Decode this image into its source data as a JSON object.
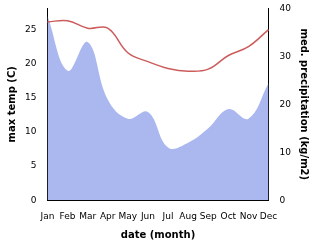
{
  "chart_data": {
    "type": "line",
    "x_label": "date (month)",
    "y_label": "max temp (C)",
    "y2_label": "med. precipitation (kg/m2)",
    "categories": [
      "Jan",
      "Feb",
      "Mar",
      "Apr",
      "May",
      "Jun",
      "Jul",
      "Aug",
      "Sep",
      "Oct",
      "Nov",
      "Dec"
    ],
    "series": [
      {
        "name": "max temp",
        "type": "line",
        "color": "#cd5c5c",
        "values": [
          26.1,
          26.3,
          25.2,
          25.2,
          21.6,
          20.3,
          19.3,
          18.9,
          19.2,
          21.2,
          22.5,
          25.0
        ]
      },
      {
        "name": "med. precipitation",
        "type": "area",
        "color": "#aab8ef",
        "axis": "y2",
        "values": [
          38.4,
          27.0,
          33.0,
          21.0,
          17.0,
          18.4,
          11.0,
          12.0,
          15.0,
          19.0,
          17.0,
          24.4
        ]
      }
    ],
    "ylim": [
      0,
      28.1
    ],
    "yticks": [
      0,
      5,
      10,
      15,
      20,
      25
    ],
    "y2lim": [
      0,
      40
    ],
    "y2ticks": [
      0,
      10,
      20,
      30,
      40
    ],
    "grid": false
  }
}
